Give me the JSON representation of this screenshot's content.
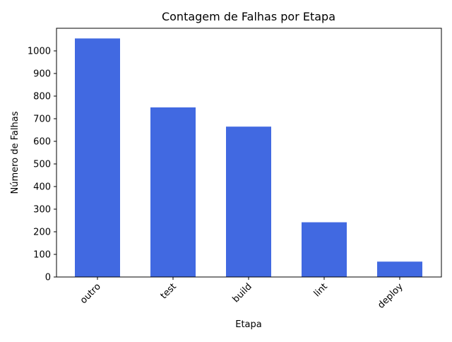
{
  "chart_data": {
    "type": "bar",
    "title": "Contagem de Falhas por Etapa",
    "xlabel": "Etapa",
    "ylabel": "Número de Falhas",
    "categories": [
      "outro",
      "test",
      "build",
      "lint",
      "deploy"
    ],
    "values": [
      1055,
      750,
      665,
      242,
      68
    ],
    "ylim": [
      0,
      1100
    ],
    "yticks": [
      0,
      100,
      200,
      300,
      400,
      500,
      600,
      700,
      800,
      900,
      1000
    ],
    "bar_color": "#4169e1",
    "grid": false,
    "legend": "none"
  }
}
